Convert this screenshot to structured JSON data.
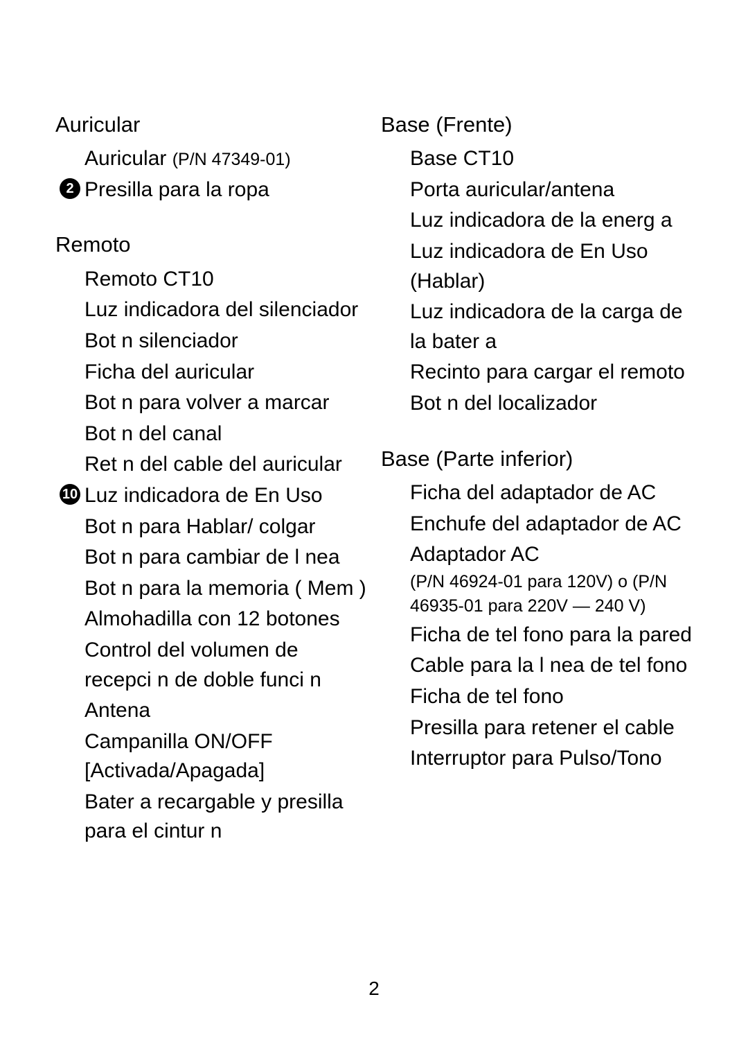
{
  "page_number": "2",
  "left": {
    "sections": [
      {
        "title": "Auricular",
        "items": [
          {
            "bullet": "",
            "text": "Auricular ",
            "sub": "(P/N 47349-01)"
          },
          {
            "bullet": "2",
            "text": "Presilla para la ropa"
          }
        ]
      },
      {
        "title": "Remoto",
        "items": [
          {
            "bullet": "",
            "text": "Remoto CT10"
          },
          {
            "bullet": "",
            "text": "Luz indicadora del silenciador"
          },
          {
            "bullet": "",
            "text": "Bot n silenciador"
          },
          {
            "bullet": "",
            "text": "Ficha del auricular"
          },
          {
            "bullet": "",
            "text": "Bot n para volver a marcar"
          },
          {
            "bullet": "",
            "text": "Bot n del canal"
          },
          {
            "bullet": "",
            "text": "Ret n del cable del auricular"
          },
          {
            "bullet": "10",
            "text": "Luz indicadora de  En Uso"
          },
          {
            "bullet": "",
            "text": "Bot n para Hablar/ colgar"
          },
          {
            "bullet": "",
            "text": "Bot n para cambiar de l nea"
          },
          {
            "bullet": "",
            "text": "Bot n para la memoria ( Mem )"
          },
          {
            "bullet": "",
            "text": "Almohadilla con 12 botones"
          },
          {
            "bullet": "",
            "text": "Control del volumen de recepci n de doble funci n"
          },
          {
            "bullet": "",
            "text": "Antena"
          },
          {
            "bullet": "",
            "text": "Campanilla  ON/OFF [Activada/Apagada]"
          },
          {
            "bullet": "",
            "text": "Bater a recargable y presilla para el cintur n"
          }
        ]
      }
    ]
  },
  "right": {
    "sections": [
      {
        "title": "Base (Frente)",
        "items": [
          {
            "bullet": "",
            "text": "Base CT10"
          },
          {
            "bullet": "",
            "text": "Porta auricular/antena"
          },
          {
            "bullet": "",
            "text": "Luz indicadora de la energ a"
          },
          {
            "bullet": "",
            "text": "Luz indicadora de  En Uso  (Hablar)"
          },
          {
            "bullet": "",
            "text": "Luz indicadora de la carga de la bater a"
          },
          {
            "bullet": "",
            "text": "Recinto para cargar el remoto"
          },
          {
            "bullet": "",
            "text": "Bot n del localizador"
          }
        ]
      },
      {
        "title": "Base (Parte inferior)",
        "items": [
          {
            "bullet": "",
            "text": "Ficha del adaptador de AC"
          },
          {
            "bullet": "",
            "text": "Enchufe del adaptador de AC"
          },
          {
            "bullet": "",
            "text": "Adaptador AC",
            "sub": "(P/N 46924-01 para 120V) o (P/N 46935-01 para 220V — 240 V)",
            "sub_block": true
          },
          {
            "bullet": "",
            "text": "Ficha de tel fono para la pared"
          },
          {
            "bullet": "",
            "text": "Cable para la l nea de tel fono"
          },
          {
            "bullet": "",
            "text": "Ficha de tel fono"
          },
          {
            "bullet": "",
            "text": "Presilla para retener el cable"
          },
          {
            "bullet": "",
            "text": "Interruptor para Pulso/Tono"
          }
        ]
      }
    ]
  }
}
